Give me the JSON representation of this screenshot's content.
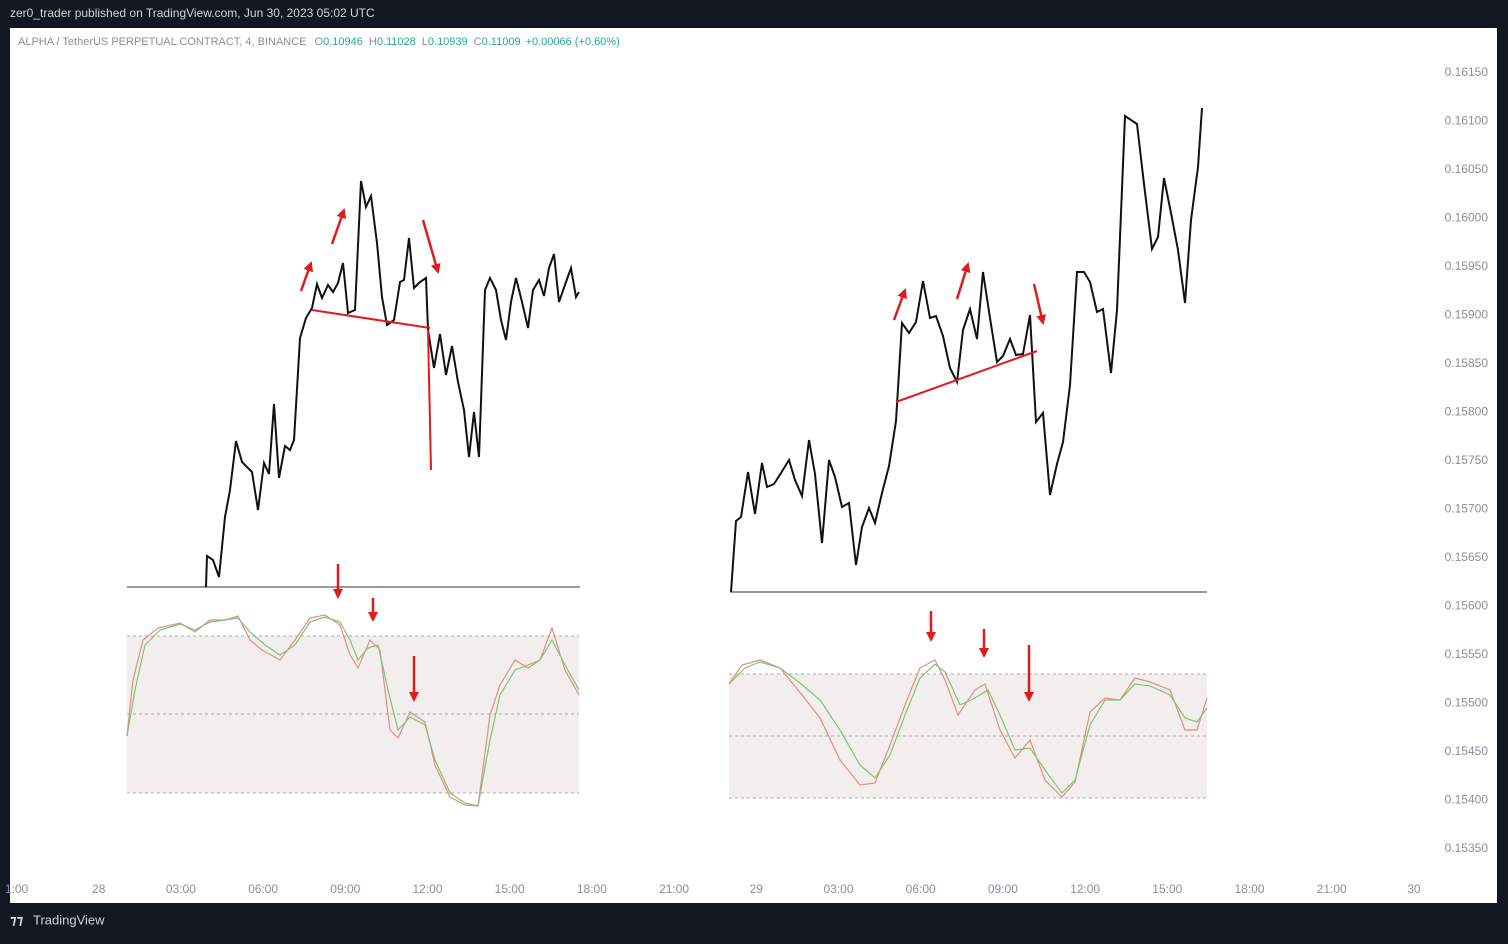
{
  "header": {
    "title": "zer0_trader published on TradingView.com, Jun 30, 2023 05:02 UTC"
  },
  "legend": {
    "symbol": "ALPHA / TetherUS PERPETUAL CONTRACT, 4, BINANCE",
    "ohlc": [
      {
        "label": "O",
        "value": "0.10946"
      },
      {
        "label": "H",
        "value": "0.11028"
      },
      {
        "label": "L",
        "value": "0.10939"
      },
      {
        "label": "C",
        "value": "0.11009"
      }
    ],
    "change": "+0.00066 (+0.60%)"
  },
  "price_axis": {
    "ticks": [
      {
        "value": 0.1615,
        "label": "0.16150"
      },
      {
        "value": 0.161,
        "label": "0.16100"
      },
      {
        "value": 0.1605,
        "label": "0.16050"
      },
      {
        "value": 0.16,
        "label": "0.16000"
      },
      {
        "value": 0.1595,
        "label": "0.15950"
      },
      {
        "value": 0.159,
        "label": "0.15900"
      },
      {
        "value": 0.1585,
        "label": "0.15850"
      },
      {
        "value": 0.158,
        "label": "0.15800"
      },
      {
        "value": 0.1575,
        "label": "0.15750"
      },
      {
        "value": 0.157,
        "label": "0.15700"
      },
      {
        "value": 0.1565,
        "label": "0.15650"
      },
      {
        "value": 0.156,
        "label": "0.15600"
      },
      {
        "value": 0.1555,
        "label": "0.15550"
      },
      {
        "value": 0.155,
        "label": "0.15500"
      },
      {
        "value": 0.1545,
        "label": "0.15450"
      },
      {
        "value": 0.154,
        "label": "0.15400"
      },
      {
        "value": 0.1535,
        "label": "0.15350"
      }
    ]
  },
  "time_axis": {
    "labels": [
      "1:00",
      "28",
      "03:00",
      "06:00",
      "09:00",
      "12:00",
      "15:00",
      "18:00",
      "21:00",
      "29",
      "03:00",
      "06:00",
      "09:00",
      "12:00",
      "15:00",
      "18:00",
      "21:00",
      "30"
    ]
  },
  "footer": {
    "brand": "TradingView"
  }
}
